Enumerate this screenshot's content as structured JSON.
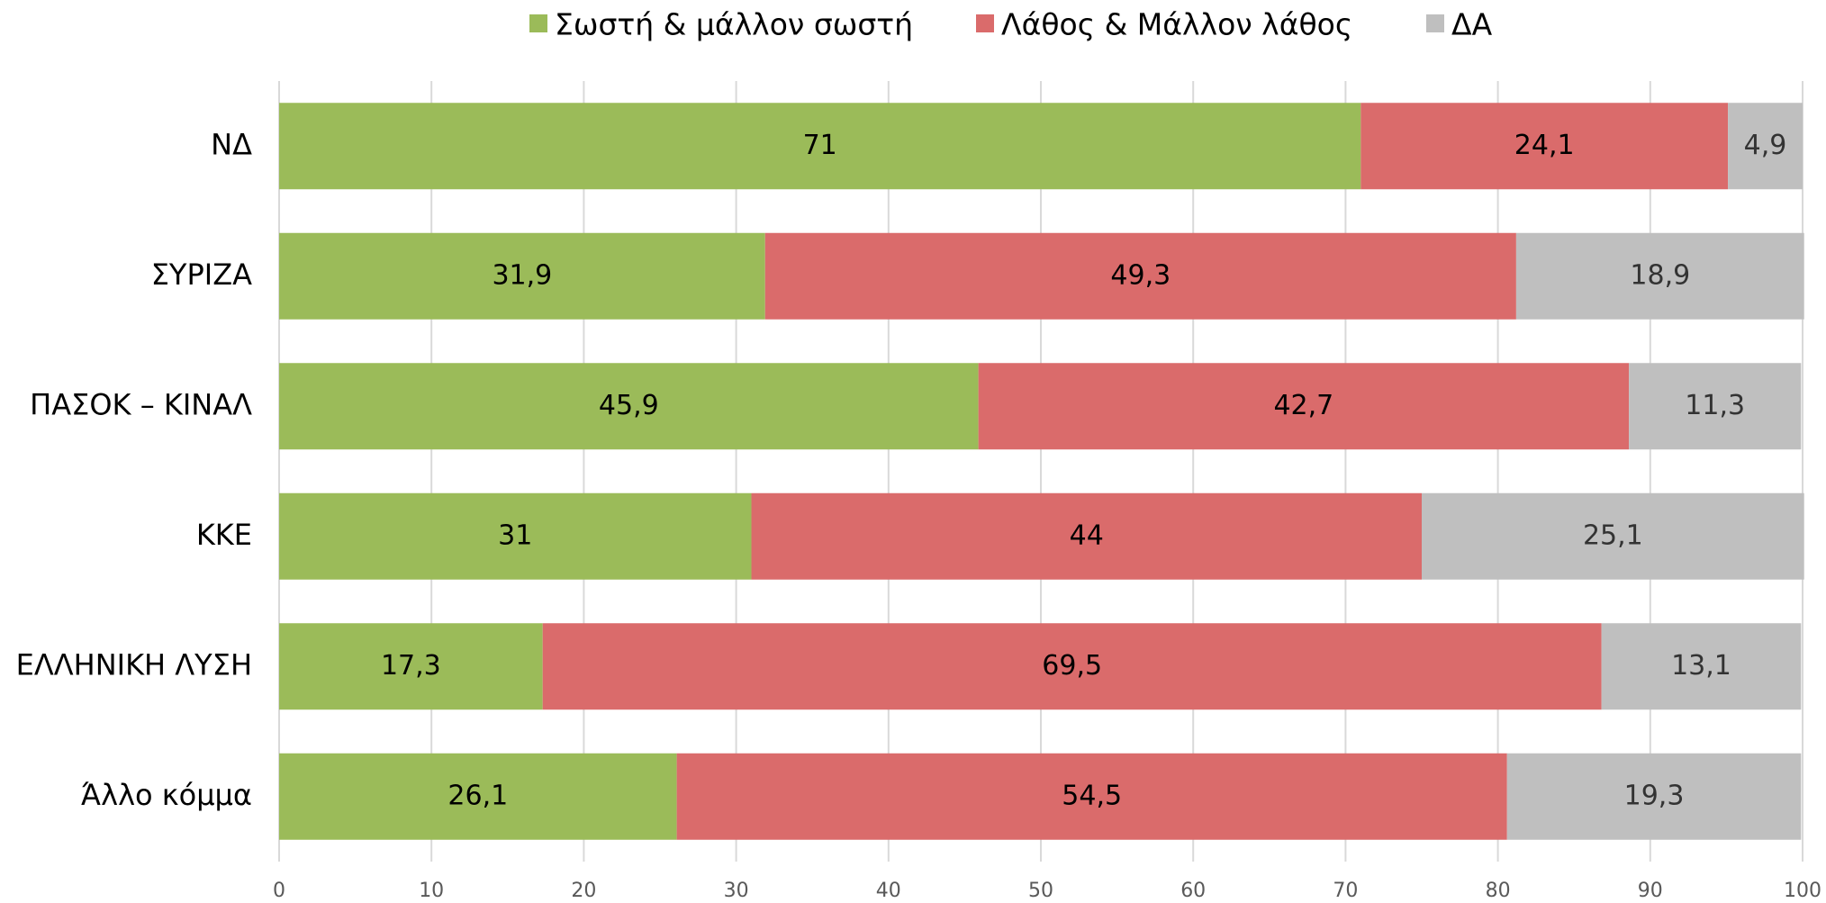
{
  "chart_data": {
    "type": "stacked_barh",
    "categories": [
      "ΝΔ",
      "ΣΥΡΙΖΑ",
      "ΠΑΣΟΚ – ΚΙΝΑΛ",
      "ΚΚΕ",
      "ΕΛΛΗΝΙΚΗ ΛΥΣΗ",
      "Άλλο κόμμα"
    ],
    "series": [
      {
        "name": "Σωστή & μάλλον σωστή",
        "color": "#9bbb59",
        "values": [
          71,
          31.9,
          45.9,
          31,
          17.3,
          26.1
        ],
        "value_labels": [
          "71",
          "31,9",
          "45,9",
          "31",
          "17,3",
          "26,1"
        ]
      },
      {
        "name": "Λάθος & Μάλλον λάθος",
        "color": "#da6b6b",
        "values": [
          24.1,
          49.3,
          42.7,
          44,
          69.5,
          54.5
        ],
        "value_labels": [
          "24,1",
          "49,3",
          "42,7",
          "44",
          "69,5",
          "54,5"
        ]
      },
      {
        "name": "ΔΑ",
        "color": "#bfbfbf",
        "values": [
          4.9,
          18.9,
          11.3,
          25.1,
          13.1,
          19.3
        ],
        "value_labels": [
          "4,9",
          "18,9",
          "11,3",
          "25,1",
          "13,1",
          "19,3"
        ]
      }
    ],
    "xlim": [
      0,
      100
    ],
    "xticks": [
      0,
      10,
      20,
      30,
      40,
      50,
      60,
      70,
      80,
      90,
      100
    ],
    "grid": true,
    "legend": "top"
  }
}
